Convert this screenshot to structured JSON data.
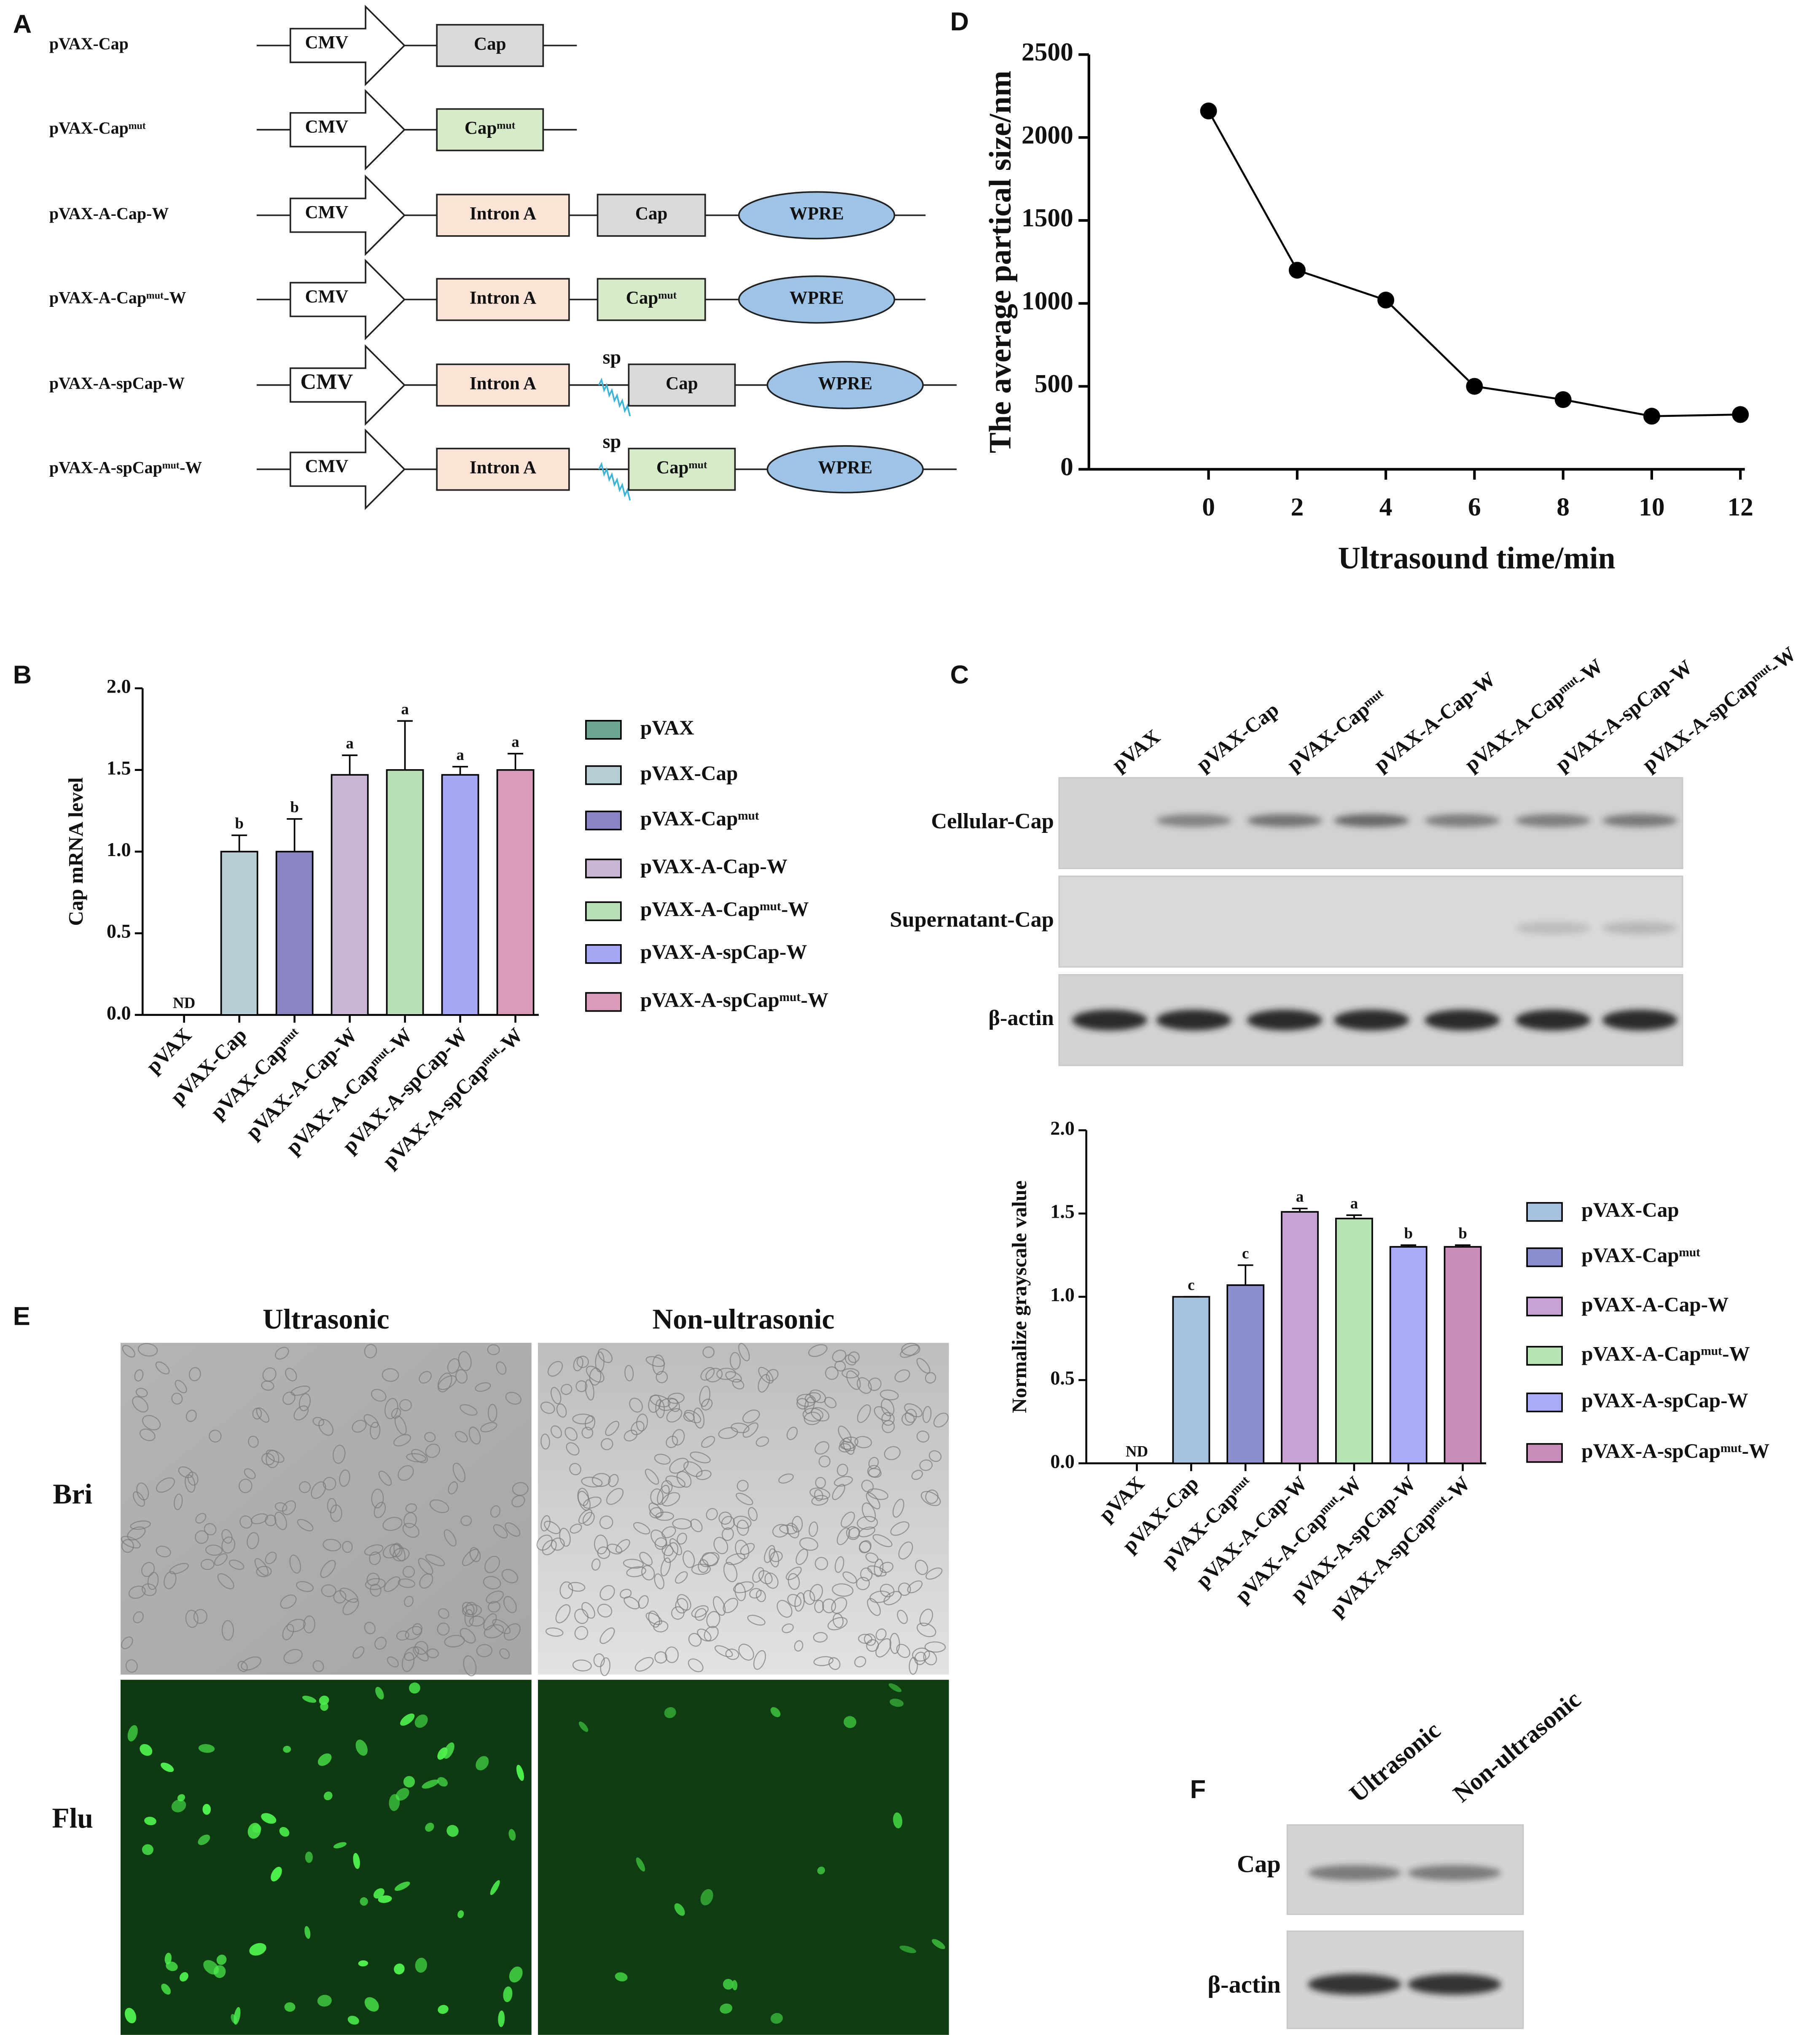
{
  "panel_labels": [
    "A",
    "B",
    "C",
    "D",
    "E",
    "F"
  ],
  "constructs": [
    {
      "name": "pVAX-Cap",
      "elements": [
        "CMV",
        "Cap"
      ]
    },
    {
      "name": "pVAX-Capᵐᵘᵗ",
      "elements": [
        "CMV",
        "Capᵐᵘᵗ"
      ]
    },
    {
      "name": "pVAX-A-Cap-W",
      "elements": [
        "CMV",
        "Intron A",
        "Cap",
        "WPRE"
      ]
    },
    {
      "name": "pVAX-A-Capᵐᵘᵗ-W",
      "elements": [
        "CMV",
        "Intron A",
        "Capᵐᵘᵗ",
        "WPRE"
      ]
    },
    {
      "name": "pVAX-A-spCap-W",
      "elements": [
        "CMV",
        "Intron A",
        "sp",
        "Cap",
        "WPRE"
      ]
    },
    {
      "name": "pVAX-A-spCapᵐᵘᵗ-W",
      "elements": [
        "CMV",
        "Intron A",
        "sp",
        "Capᵐᵘᵗ",
        "WPRE"
      ]
    }
  ],
  "chart_data": [
    {
      "type": "line",
      "xlabel": "Ultrasound time/min",
      "ylabel": "The average partical size/nm",
      "x": [
        0,
        2,
        4,
        6,
        8,
        10,
        12
      ],
      "values": [
        2160,
        1200,
        1020,
        500,
        420,
        320,
        330
      ],
      "color": "#000000",
      "xlim": [
        -2.7,
        12.1
      ],
      "xticks": [
        0,
        2,
        4,
        6,
        8,
        10,
        12
      ],
      "ylim": [
        0,
        2500
      ],
      "yticks": [
        0,
        500,
        1000,
        1500,
        2000,
        2500
      ]
    },
    {
      "type": "bar",
      "ylabel": "Cap mRNA level",
      "categories": [
        "pVAX",
        "pVAX-Cap",
        "pVAX-Capᵐᵘᵗ",
        "pVAX-A-Cap-W",
        "pVAX-A-Capᵐᵘᵗ-W",
        "pVAX-A-spCap-W",
        "pVAX-A-spCapᵐᵘᵗ-W"
      ],
      "values": [
        null,
        1.0,
        1.0,
        1.47,
        1.5,
        1.47,
        1.5
      ],
      "errors": [
        null,
        0.1,
        0.2,
        0.12,
        0.3,
        0.05,
        0.1
      ],
      "annotations": [
        "ND",
        "b",
        "b",
        "a",
        "a",
        "a",
        "a"
      ],
      "ylim": [
        0,
        2
      ],
      "yticks": [
        {
          "value": 0,
          "label": "0.0"
        },
        0.5,
        {
          "value": 1,
          "label": "1.0"
        },
        1.5,
        {
          "value": 2,
          "label": "2.0"
        }
      ],
      "legend": [
        {
          "name": "pVAX",
          "color": "#6fa595"
        },
        {
          "name": "pVAX-Cap",
          "color": "#b5ced3"
        },
        {
          "name": "pVAX-Capᵐᵘᵗ",
          "color": "#8a86c4"
        },
        {
          "name": "pVAX-A-Cap-W",
          "color": "#c8b4d4"
        },
        {
          "name": "pVAX-A-Capᵐᵘᵗ-W",
          "color": "#b8deb6"
        },
        {
          "name": "pVAX-A-spCap-W",
          "color": "#a6a8f5"
        },
        {
          "name": "pVAX-A-spCapᵐᵘᵗ-W",
          "color": "#d99bb8"
        }
      ]
    },
    {
      "type": "bar",
      "ylabel": "Normalize grayscale value",
      "categories": [
        "pVAX",
        "pVAX-Cap",
        "pVAX-Capᵐᵘᵗ",
        "pVAX-A-Cap-W",
        "pVAX-A-Capᵐᵘᵗ-W",
        "pVAX-A-spCap-W",
        "pVAX-A-spCapᵐᵘᵗ-W"
      ],
      "values": [
        null,
        1.0,
        1.07,
        1.51,
        1.47,
        1.3,
        1.3
      ],
      "errors": [
        null,
        0,
        0.12,
        0.02,
        0.02,
        0.01,
        0.01
      ],
      "annotations": [
        "ND",
        "c",
        "c",
        "a",
        "a",
        "b",
        "b"
      ],
      "ylim": [
        0,
        2
      ],
      "yticks": [
        {
          "value": 0,
          "label": "0.0"
        },
        0.5,
        {
          "value": 1,
          "label": "1.0"
        },
        1.5,
        {
          "value": 2,
          "label": "2.0"
        }
      ],
      "legend": [
        {
          "name": "pVAX-Cap",
          "color": "#a7c1e0"
        },
        {
          "name": "pVAX-Capᵐᵘᵗ",
          "color": "#8c8fcf"
        },
        {
          "name": "pVAX-A-Cap-W",
          "color": "#c8a2d4"
        },
        {
          "name": "pVAX-A-Capᵐᵘᵗ-W",
          "color": "#b6e4b4"
        },
        {
          "name": "pVAX-A-spCap-W",
          "color": "#a9abf7"
        },
        {
          "name": "pVAX-A-spCapᵐᵘᵗ-W",
          "color": "#c98cba"
        }
      ]
    }
  ],
  "blot_c": {
    "lanes": [
      "pVAX",
      "pVAX-Cap",
      "pVAX-Capᵐᵘᵗ",
      "pVAX-A-Cap-W",
      "pVAX-A-Capᵐᵘᵗ-W",
      "pVAX-A-spCap-W",
      "pVAX-A-spCapᵐᵘᵗ-W"
    ],
    "rows": [
      "Cellular-Cap",
      "Supernatant-Cap",
      "β-actin"
    ]
  },
  "micrographs": {
    "columns": [
      "Ultrasonic",
      "Non-ultrasonic"
    ],
    "rows": [
      "Bri",
      "Flu"
    ]
  },
  "blot_f": {
    "lanes": [
      "Ultrasonic",
      "Non-ultrasonic"
    ],
    "rows": [
      "Cap",
      "β-actin"
    ]
  }
}
